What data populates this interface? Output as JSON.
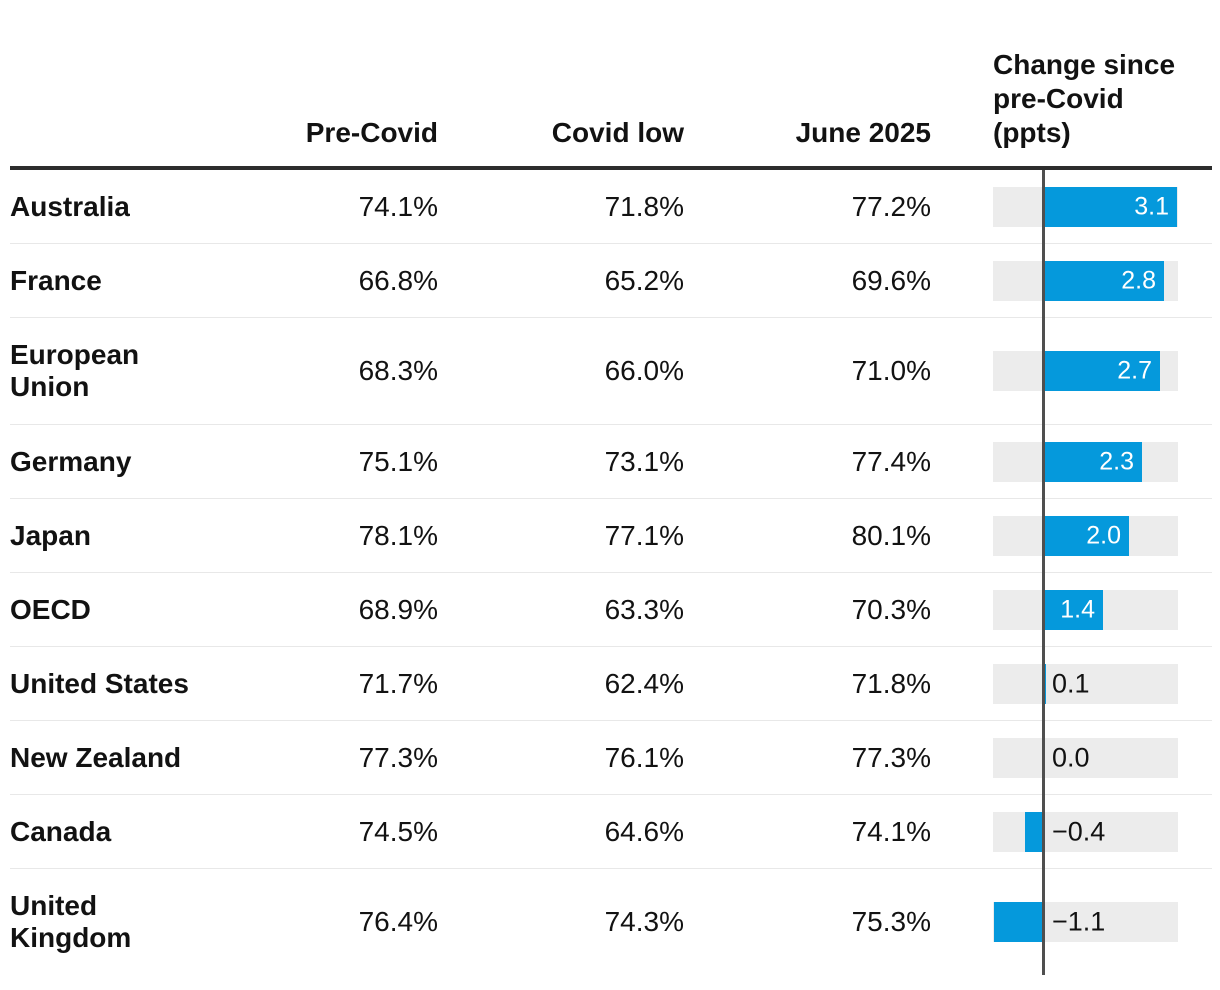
{
  "accent_color": "#0599dc",
  "track_color": "#ececec",
  "axis_line_color": "#4f4f4f",
  "table": {
    "change_header_lines": [
      "Change since",
      "pre-Covid",
      "(ppts)"
    ],
    "columns": [
      "Pre-Covid",
      "Covid low",
      "June 2025",
      "Change since pre-Covid (ppts)"
    ],
    "rows": [
      {
        "label_lines": [
          "Australia"
        ],
        "pre_covid": "74.1%",
        "covid_low": "71.8%",
        "june_2025": "77.2%",
        "change": 3.1,
        "change_label": "3.1"
      },
      {
        "label_lines": [
          "France"
        ],
        "pre_covid": "66.8%",
        "covid_low": "65.2%",
        "june_2025": "69.6%",
        "change": 2.8,
        "change_label": "2.8"
      },
      {
        "label_lines": [
          "European",
          "Union"
        ],
        "pre_covid": "68.3%",
        "covid_low": "66.0%",
        "june_2025": "71.0%",
        "change": 2.7,
        "change_label": "2.7"
      },
      {
        "label_lines": [
          "Germany"
        ],
        "pre_covid": "75.1%",
        "covid_low": "73.1%",
        "june_2025": "77.4%",
        "change": 2.3,
        "change_label": "2.3"
      },
      {
        "label_lines": [
          "Japan"
        ],
        "pre_covid": "78.1%",
        "covid_low": "77.1%",
        "june_2025": "80.1%",
        "change": 2.0,
        "change_label": "2.0"
      },
      {
        "label_lines": [
          "OECD"
        ],
        "pre_covid": "68.9%",
        "covid_low": "63.3%",
        "june_2025": "70.3%",
        "change": 1.4,
        "change_label": "1.4"
      },
      {
        "label_lines": [
          "United States"
        ],
        "pre_covid": "71.7%",
        "covid_low": "62.4%",
        "june_2025": "71.8%",
        "change": 0.1,
        "change_label": "0.1"
      },
      {
        "label_lines": [
          "New Zealand"
        ],
        "pre_covid": "77.3%",
        "covid_low": "76.1%",
        "june_2025": "77.3%",
        "change": 0.0,
        "change_label": "0.0"
      },
      {
        "label_lines": [
          "Canada"
        ],
        "pre_covid": "74.5%",
        "covid_low": "64.6%",
        "june_2025": "74.1%",
        "change": -0.4,
        "change_label": "−0.4"
      },
      {
        "label_lines": [
          "United",
          "Kingdom"
        ],
        "pre_covid": "76.4%",
        "covid_low": "74.3%",
        "june_2025": "75.3%",
        "change": -1.1,
        "change_label": "−1.1"
      }
    ]
  },
  "chart_data": {
    "type": "table",
    "title": "",
    "columns": [
      "Country",
      "Pre-Covid",
      "Covid low",
      "June 2025",
      "Change since pre-Covid (ppts)"
    ],
    "rows": [
      {
        "country": "Australia",
        "pre_covid_pct": 74.1,
        "covid_low_pct": 71.8,
        "june_2025_pct": 77.2,
        "change_ppts": 3.1
      },
      {
        "country": "France",
        "pre_covid_pct": 66.8,
        "covid_low_pct": 65.2,
        "june_2025_pct": 69.6,
        "change_ppts": 2.8
      },
      {
        "country": "European Union",
        "pre_covid_pct": 68.3,
        "covid_low_pct": 66.0,
        "june_2025_pct": 71.0,
        "change_ppts": 2.7
      },
      {
        "country": "Germany",
        "pre_covid_pct": 75.1,
        "covid_low_pct": 73.1,
        "june_2025_pct": 77.4,
        "change_ppts": 2.3
      },
      {
        "country": "Japan",
        "pre_covid_pct": 78.1,
        "covid_low_pct": 77.1,
        "june_2025_pct": 80.1,
        "change_ppts": 2.0
      },
      {
        "country": "OECD",
        "pre_covid_pct": 68.9,
        "covid_low_pct": 63.3,
        "june_2025_pct": 70.3,
        "change_ppts": 1.4
      },
      {
        "country": "United States",
        "pre_covid_pct": 71.7,
        "covid_low_pct": 62.4,
        "june_2025_pct": 71.8,
        "change_ppts": 0.1
      },
      {
        "country": "New Zealand",
        "pre_covid_pct": 77.3,
        "covid_low_pct": 76.1,
        "june_2025_pct": 77.3,
        "change_ppts": 0.0
      },
      {
        "country": "Canada",
        "pre_covid_pct": 74.5,
        "covid_low_pct": 64.6,
        "june_2025_pct": 74.1,
        "change_ppts": -0.4
      },
      {
        "country": "United Kingdom",
        "pre_covid_pct": 76.4,
        "covid_low_pct": 74.3,
        "june_2025_pct": 75.3,
        "change_ppts": -1.1
      }
    ],
    "embedded_bar": {
      "type": "bar",
      "orientation": "horizontal",
      "column": "Change since pre-Covid (ppts)",
      "values": [
        3.1,
        2.8,
        2.7,
        2.3,
        2.0,
        1.4,
        0.1,
        0.0,
        -0.4,
        -1.1
      ],
      "xlim": [
        -1.15,
        3.1
      ],
      "zero_line": true,
      "bar_color": "#0599dc",
      "track_color": "#ececec",
      "grid": false,
      "legend": "none"
    }
  }
}
